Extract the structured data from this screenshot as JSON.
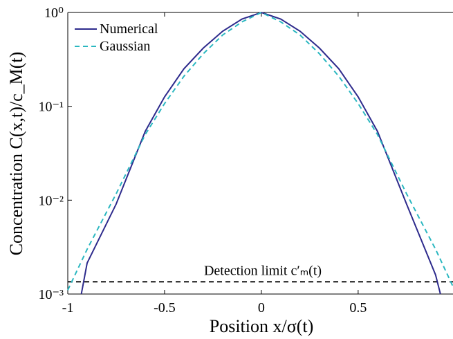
{
  "chart_data": {
    "type": "line",
    "xlabel": "Position x/σ(t)",
    "ylabel": "Concentration C(x,t)/c_M(t)",
    "annotation": "Detection limit c′ₘ(t)",
    "detection_limit": 0.00135,
    "xlim": [
      -1,
      0.99
    ],
    "xticks": [
      -1,
      -0.5,
      0,
      0.5
    ],
    "ylim": [
      0.001,
      1
    ],
    "log_y": true,
    "yticks": [
      {
        "value": 0.001,
        "label": "10⁻³"
      },
      {
        "value": 0.01,
        "label": "10⁻²"
      },
      {
        "value": 0.1,
        "label": "10⁻¹"
      },
      {
        "value": 1,
        "label": "10⁰"
      }
    ],
    "legend": "upper left",
    "series": [
      {
        "name": "Numerical",
        "color": "#2d2a8c",
        "style": "solid",
        "x": [
          -0.93,
          -0.9,
          -0.75,
          -0.6,
          -0.5,
          -0.4,
          -0.3,
          -0.2,
          -0.1,
          0,
          0.1,
          0.2,
          0.3,
          0.4,
          0.5,
          0.6,
          0.75,
          0.9,
          0.925
        ],
        "values": [
          0.001,
          0.00214,
          0.0091,
          0.054,
          0.126,
          0.251,
          0.417,
          0.631,
          0.851,
          1,
          0.851,
          0.631,
          0.417,
          0.251,
          0.126,
          0.054,
          0.0091,
          0.0016,
          0.001
        ]
      },
      {
        "name": "Gaussian",
        "color": "#2ab7c0",
        "style": "dashed",
        "x": [
          -1,
          -0.9,
          -0.75,
          -0.6,
          -0.5,
          -0.4,
          -0.3,
          -0.2,
          -0.1,
          0,
          0.1,
          0.2,
          0.3,
          0.4,
          0.5,
          0.6,
          0.75,
          0.9,
          0.99
        ],
        "values": [
          0.0011,
          0.003,
          0.0117,
          0.05,
          0.107,
          0.209,
          0.363,
          0.575,
          0.794,
          1,
          0.794,
          0.575,
          0.363,
          0.209,
          0.107,
          0.05,
          0.0117,
          0.003,
          0.0012
        ]
      }
    ]
  }
}
